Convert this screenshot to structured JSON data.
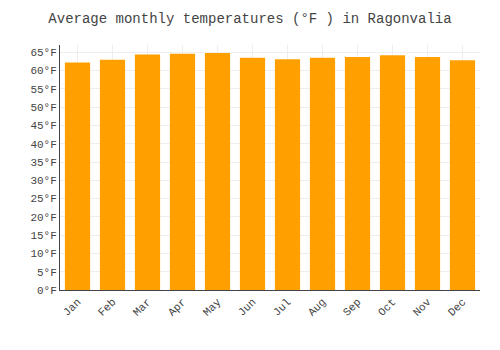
{
  "chart_data": {
    "type": "bar",
    "title": "Average monthly temperatures (°F ) in Ragonvalia",
    "categories": [
      "Jan",
      "Feb",
      "Mar",
      "Apr",
      "May",
      "Jun",
      "Jul",
      "Aug",
      "Sep",
      "Oct",
      "Nov",
      "Dec"
    ],
    "values": [
      62.2,
      63.0,
      64.4,
      64.6,
      64.8,
      63.5,
      63.1,
      63.5,
      63.7,
      64.2,
      63.7,
      62.8
    ],
    "color": "#FFA000",
    "ylim": [
      0,
      67
    ],
    "yticks": [
      {
        "value": 0,
        "label": "0°F"
      },
      {
        "value": 5,
        "label": "5°F"
      },
      {
        "value": 10,
        "label": "10°F"
      },
      {
        "value": 15,
        "label": "15°F"
      },
      {
        "value": 20,
        "label": "20°F"
      },
      {
        "value": 25,
        "label": "25°F"
      },
      {
        "value": 30,
        "label": "30°F"
      },
      {
        "value": 35,
        "label": "35°F"
      },
      {
        "value": 40,
        "label": "40°F"
      },
      {
        "value": 45,
        "label": "45°F"
      },
      {
        "value": 50,
        "label": "50°F"
      },
      {
        "value": 55,
        "label": "55°F"
      },
      {
        "value": 60,
        "label": "60°F"
      },
      {
        "value": 65,
        "label": "65°F"
      }
    ],
    "grid": true
  }
}
